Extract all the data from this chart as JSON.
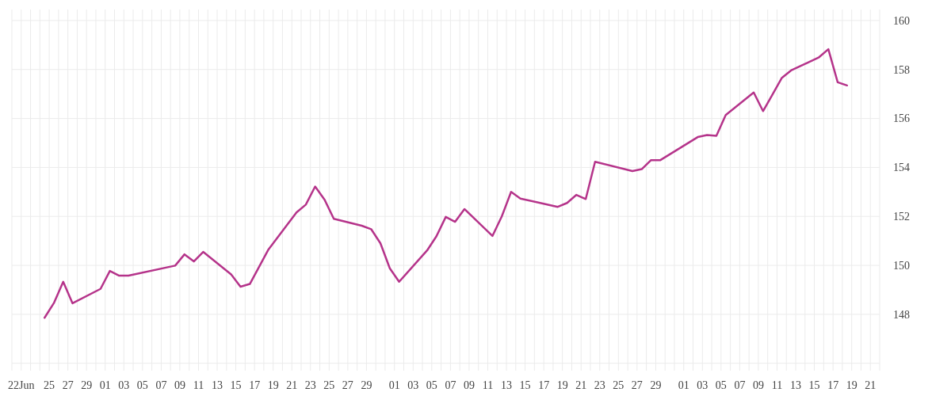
{
  "chart_data": {
    "type": "line",
    "color": "#b5338a",
    "x": [
      "--06-24T12:00",
      "--06-25T12:00",
      "--06-26T12:00",
      "--06-27T12:00",
      "--06-30T12:00",
      "--07-01T12:00",
      "--07-02T12:00",
      "--07-03T12:00",
      "--07-08T12:00",
      "--07-09T12:00",
      "--07-10T12:00",
      "--07-11T12:00",
      "--07-14T12:00",
      "--07-15T12:00",
      "--07-16T12:00",
      "--07-18T12:00",
      "--07-21T12:00",
      "--07-22T12:00",
      "--07-23T12:00",
      "--07-24T12:00",
      "--07-25T12:00",
      "--07-28T12:00",
      "--07-29T12:00",
      "--07-30T12:00",
      "--07-31T12:00",
      "--08-01T12:00",
      "--08-04T12:00",
      "--08-05T12:00",
      "--08-06T12:00",
      "--08-07T12:00",
      "--08-08T12:00",
      "--08-11T12:00",
      "--08-12T12:00",
      "--08-13T12:00",
      "--08-14T12:00",
      "--08-18T12:00",
      "--08-19T12:00",
      "--08-20T12:00",
      "--08-21T12:00",
      "--08-22T12:00",
      "--08-26T12:00",
      "--08-27T12:00",
      "--08-28T12:00",
      "--08-29T12:00",
      "--09-02T12:00",
      "--09-03T12:00",
      "--09-04T12:00",
      "--09-05T12:00",
      "--09-08T12:00",
      "--09-09T12:00",
      "--09-10T12:00",
      "--09-11T12:00",
      "--09-12T12:00",
      "--09-15T12:00",
      "--09-16T12:00",
      "--09-17T12:00",
      "--09-18T12:00"
    ],
    "values": [
      147.86,
      148.46,
      149.33,
      148.45,
      149.04,
      149.77,
      149.58,
      149.58,
      149.99,
      150.45,
      150.16,
      150.55,
      149.63,
      149.13,
      149.24,
      150.65,
      152.16,
      152.48,
      153.22,
      152.69,
      151.9,
      151.62,
      151.48,
      150.9,
      149.88,
      149.33,
      150.61,
      151.19,
      151.98,
      151.78,
      152.3,
      151.2,
      152.0,
      153.0,
      152.73,
      152.39,
      152.55,
      152.88,
      152.71,
      154.23,
      153.85,
      153.93,
      154.3,
      154.3,
      155.24,
      155.32,
      155.29,
      156.14,
      157.06,
      156.3,
      156.97,
      157.65,
      157.96,
      158.5,
      158.83,
      157.48,
      157.35
    ],
    "xlim": [
      "--06-21",
      "--09-22"
    ],
    "xticks": [
      {
        "value": "--06-21",
        "label": null
      },
      {
        "value": "--06-22",
        "label": "22Jun"
      },
      {
        "value": "--06-23",
        "label": null
      },
      {
        "value": "--06-24",
        "label": null
      },
      {
        "value": "--06-25",
        "label": "25"
      },
      {
        "value": "--06-26",
        "label": null
      },
      {
        "value": "--06-27",
        "label": "27"
      },
      {
        "value": "--06-28",
        "label": null
      },
      {
        "value": "--06-29",
        "label": "29"
      },
      {
        "value": "--06-30",
        "label": null
      },
      {
        "value": "--07-01",
        "label": "01"
      },
      {
        "value": "--07-02",
        "label": null
      },
      {
        "value": "--07-03",
        "label": "03"
      },
      {
        "value": "--07-04",
        "label": null
      },
      {
        "value": "--07-05",
        "label": "05"
      },
      {
        "value": "--07-06",
        "label": null
      },
      {
        "value": "--07-07",
        "label": "07"
      },
      {
        "value": "--07-08",
        "label": null
      },
      {
        "value": "--07-09",
        "label": "09"
      },
      {
        "value": "--07-10",
        "label": null
      },
      {
        "value": "--07-11",
        "label": "11"
      },
      {
        "value": "--07-12",
        "label": null
      },
      {
        "value": "--07-13",
        "label": "13"
      },
      {
        "value": "--07-14",
        "label": null
      },
      {
        "value": "--07-15",
        "label": "15"
      },
      {
        "value": "--07-16",
        "label": null
      },
      {
        "value": "--07-17",
        "label": "17"
      },
      {
        "value": "--07-18",
        "label": null
      },
      {
        "value": "--07-19",
        "label": "19"
      },
      {
        "value": "--07-20",
        "label": null
      },
      {
        "value": "--07-21",
        "label": "21"
      },
      {
        "value": "--07-22",
        "label": null
      },
      {
        "value": "--07-23",
        "label": "23"
      },
      {
        "value": "--07-24",
        "label": null
      },
      {
        "value": "--07-25",
        "label": "25"
      },
      {
        "value": "--07-26",
        "label": null
      },
      {
        "value": "--07-27",
        "label": "27"
      },
      {
        "value": "--07-28",
        "label": null
      },
      {
        "value": "--07-29",
        "label": "29"
      },
      {
        "value": "--07-30",
        "label": null
      },
      {
        "value": "--07-31",
        "label": null
      },
      {
        "value": "--08-01",
        "label": "01"
      },
      {
        "value": "--08-02",
        "label": null
      },
      {
        "value": "--08-03",
        "label": "03"
      },
      {
        "value": "--08-04",
        "label": null
      },
      {
        "value": "--08-05",
        "label": "05"
      },
      {
        "value": "--08-06",
        "label": null
      },
      {
        "value": "--08-07",
        "label": "07"
      },
      {
        "value": "--08-08",
        "label": null
      },
      {
        "value": "--08-09",
        "label": "09"
      },
      {
        "value": "--08-10",
        "label": null
      },
      {
        "value": "--08-11",
        "label": "11"
      },
      {
        "value": "--08-12",
        "label": null
      },
      {
        "value": "--08-13",
        "label": "13"
      },
      {
        "value": "--08-14",
        "label": null
      },
      {
        "value": "--08-15",
        "label": "15"
      },
      {
        "value": "--08-16",
        "label": null
      },
      {
        "value": "--08-17",
        "label": "17"
      },
      {
        "value": "--08-18",
        "label": null
      },
      {
        "value": "--08-19",
        "label": "19"
      },
      {
        "value": "--08-20",
        "label": null
      },
      {
        "value": "--08-21",
        "label": "21"
      },
      {
        "value": "--08-22",
        "label": null
      },
      {
        "value": "--08-23",
        "label": "23"
      },
      {
        "value": "--08-24",
        "label": null
      },
      {
        "value": "--08-25",
        "label": "25"
      },
      {
        "value": "--08-26",
        "label": null
      },
      {
        "value": "--08-27",
        "label": "27"
      },
      {
        "value": "--08-28",
        "label": null
      },
      {
        "value": "--08-29",
        "label": "29"
      },
      {
        "value": "--08-30",
        "label": null
      },
      {
        "value": "--08-31",
        "label": null
      },
      {
        "value": "--09-01",
        "label": "01"
      },
      {
        "value": "--09-02",
        "label": null
      },
      {
        "value": "--09-03",
        "label": "03"
      },
      {
        "value": "--09-04",
        "label": null
      },
      {
        "value": "--09-05",
        "label": "05"
      },
      {
        "value": "--09-06",
        "label": null
      },
      {
        "value": "--09-07",
        "label": "07"
      },
      {
        "value": "--09-08",
        "label": null
      },
      {
        "value": "--09-09",
        "label": "09"
      },
      {
        "value": "--09-10",
        "label": null
      },
      {
        "value": "--09-11",
        "label": "11"
      },
      {
        "value": "--09-12",
        "label": null
      },
      {
        "value": "--09-13",
        "label": "13"
      },
      {
        "value": "--09-14",
        "label": null
      },
      {
        "value": "--09-15",
        "label": "15"
      },
      {
        "value": "--09-16",
        "label": null
      },
      {
        "value": "--09-17",
        "label": "17"
      },
      {
        "value": "--09-18",
        "label": null
      },
      {
        "value": "--09-19",
        "label": "19"
      },
      {
        "value": "--09-20",
        "label": null
      },
      {
        "value": "--09-21",
        "label": "21"
      },
      {
        "value": "--09-22",
        "label": null
      }
    ],
    "ylim": [
      145.7,
      160.45
    ],
    "yticks": [
      {
        "value": 146,
        "label": null
      },
      148,
      150,
      152,
      154,
      156,
      158,
      160
    ],
    "grid": true,
    "marker": "none",
    "line_style": "solid"
  }
}
